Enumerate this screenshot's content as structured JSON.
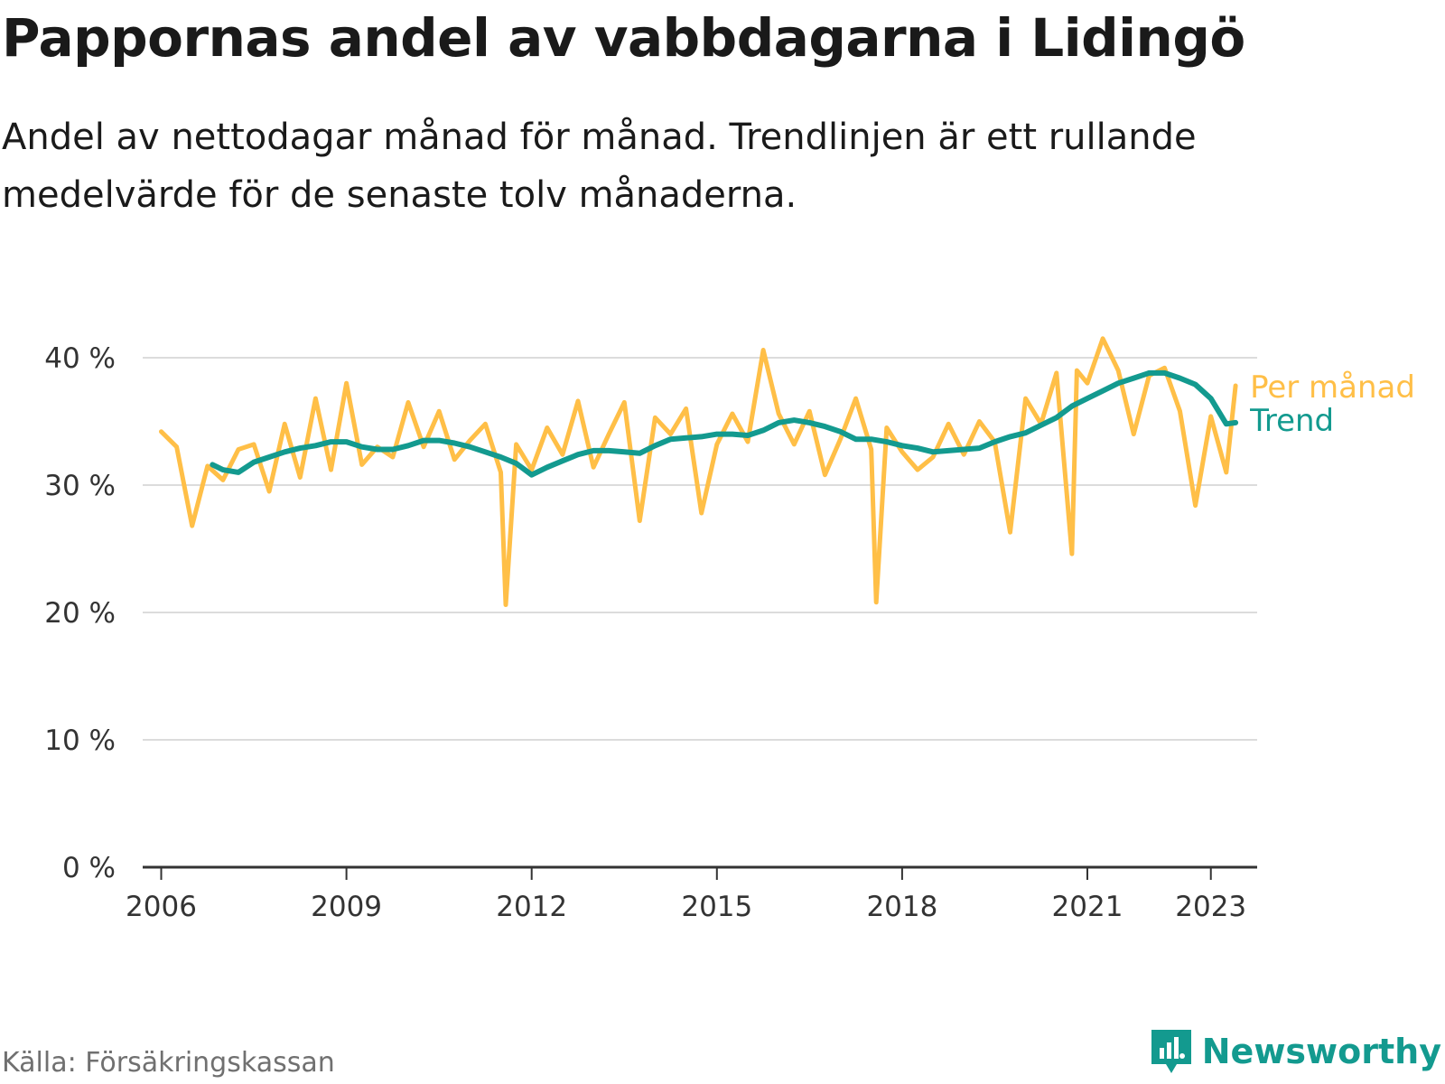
{
  "title": "Pappornas andel av vabbdagarna i Lidingö",
  "subtitle": "Andel av nettodagar månad för månad. Trendlinjen är ett rullande medelvärde för de senaste tolv månaderna.",
  "source": "Källa: Försäkringskassan",
  "brand": {
    "name": "Newsworthy",
    "icon": "newsworthy-chart-icon",
    "color": "#139a8f"
  },
  "chart_data": {
    "type": "line",
    "title": "Pappornas andel av vabbdagarna i Lidingö",
    "ylim": [
      0,
      40
    ],
    "y_ticks": [
      "0 %",
      "10 %",
      "20 %",
      "30 %",
      "40 %"
    ],
    "y_tick_values": [
      0,
      10,
      20,
      30,
      40
    ],
    "x_ticks": [
      "2006",
      "2009",
      "2012",
      "2015",
      "2018",
      "2021",
      "2023"
    ],
    "x_tick_values": [
      2006,
      2009,
      2012,
      2015,
      2018,
      2021,
      2023
    ],
    "grid": true,
    "legend": "inline-right",
    "series": [
      {
        "name": "Per månad",
        "color": "#ffbf47",
        "x": [
          2006.0,
          2006.25,
          2006.5,
          2006.75,
          2007.0,
          2007.25,
          2007.5,
          2007.75,
          2008.0,
          2008.25,
          2008.5,
          2008.75,
          2009.0,
          2009.25,
          2009.5,
          2009.75,
          2010.0,
          2010.25,
          2010.5,
          2010.75,
          2011.0,
          2011.25,
          2011.5,
          2011.58,
          2011.75,
          2012.0,
          2012.25,
          2012.5,
          2012.75,
          2013.0,
          2013.25,
          2013.5,
          2013.75,
          2014.0,
          2014.25,
          2014.5,
          2014.75,
          2015.0,
          2015.25,
          2015.5,
          2015.75,
          2016.0,
          2016.25,
          2016.5,
          2016.75,
          2017.0,
          2017.25,
          2017.5,
          2017.58,
          2017.75,
          2018.0,
          2018.25,
          2018.5,
          2018.75,
          2019.0,
          2019.25,
          2019.5,
          2019.75,
          2020.0,
          2020.25,
          2020.5,
          2020.75,
          2020.83,
          2021.0,
          2021.25,
          2021.5,
          2021.75,
          2022.0,
          2022.25,
          2022.5,
          2022.75,
          2023.0,
          2023.25,
          2023.4
        ],
        "values": [
          34.2,
          33.0,
          26.8,
          31.5,
          30.4,
          32.8,
          33.2,
          29.5,
          34.8,
          30.6,
          36.8,
          31.2,
          38.0,
          31.6,
          33.0,
          32.2,
          36.5,
          33.0,
          35.8,
          32.0,
          33.5,
          34.8,
          31.0,
          20.6,
          33.2,
          31.2,
          34.5,
          32.4,
          36.6,
          31.4,
          34.0,
          36.5,
          27.2,
          35.3,
          34.0,
          36.0,
          27.8,
          33.2,
          35.6,
          33.4,
          40.6,
          35.6,
          33.2,
          35.8,
          30.8,
          33.6,
          36.8,
          32.8,
          20.8,
          34.5,
          32.6,
          31.2,
          32.2,
          34.8,
          32.4,
          35.0,
          33.4,
          26.3,
          36.8,
          34.8,
          38.8,
          24.6,
          39.0,
          38.0,
          41.5,
          39.0,
          34.0,
          38.6,
          39.2,
          35.8,
          28.4,
          35.4,
          31.0,
          37.8
        ]
      },
      {
        "name": "Trend",
        "color": "#139a8f",
        "x": [
          2006.83,
          2007.0,
          2007.25,
          2007.5,
          2007.75,
          2008.0,
          2008.25,
          2008.5,
          2008.75,
          2009.0,
          2009.25,
          2009.5,
          2009.75,
          2010.0,
          2010.25,
          2010.5,
          2010.75,
          2011.0,
          2011.25,
          2011.5,
          2011.75,
          2012.0,
          2012.25,
          2012.5,
          2012.75,
          2013.0,
          2013.25,
          2013.5,
          2013.75,
          2014.0,
          2014.25,
          2014.5,
          2014.75,
          2015.0,
          2015.25,
          2015.5,
          2015.75,
          2016.0,
          2016.25,
          2016.5,
          2016.75,
          2017.0,
          2017.25,
          2017.5,
          2017.75,
          2018.0,
          2018.25,
          2018.5,
          2018.75,
          2019.0,
          2019.25,
          2019.5,
          2019.75,
          2020.0,
          2020.25,
          2020.5,
          2020.75,
          2021.0,
          2021.25,
          2021.5,
          2021.75,
          2022.0,
          2022.25,
          2022.5,
          2022.75,
          2023.0,
          2023.25,
          2023.4
        ],
        "values": [
          31.6,
          31.2,
          31.0,
          31.8,
          32.2,
          32.6,
          32.9,
          33.1,
          33.4,
          33.4,
          33.0,
          32.8,
          32.8,
          33.1,
          33.5,
          33.5,
          33.3,
          33.0,
          32.6,
          32.2,
          31.7,
          30.8,
          31.4,
          31.9,
          32.4,
          32.7,
          32.7,
          32.6,
          32.5,
          33.1,
          33.6,
          33.7,
          33.8,
          34.0,
          34.0,
          33.9,
          34.3,
          34.9,
          35.1,
          34.9,
          34.6,
          34.2,
          33.6,
          33.6,
          33.4,
          33.1,
          32.9,
          32.6,
          32.7,
          32.8,
          32.9,
          33.4,
          33.8,
          34.1,
          34.7,
          35.3,
          36.2,
          36.8,
          37.4,
          38.0,
          38.4,
          38.8,
          38.8,
          38.4,
          37.9,
          36.8,
          34.8,
          34.9
        ]
      }
    ]
  }
}
